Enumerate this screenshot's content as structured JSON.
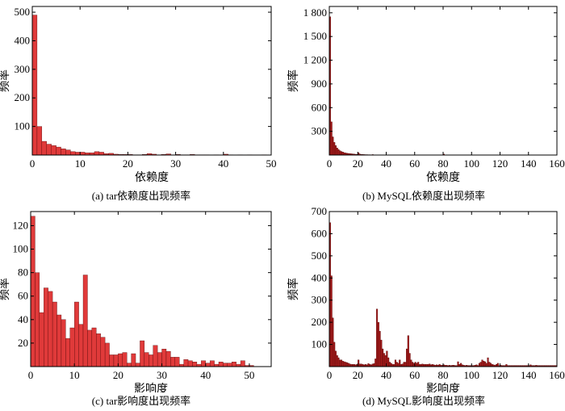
{
  "chart_data": [
    {
      "type": "bar",
      "caption": "(a) tar依赖度出现频率",
      "xlabel": "依赖度",
      "ylabel": "频率",
      "xlim": [
        0,
        50
      ],
      "ylim": [
        0,
        520
      ],
      "xticks": [
        0,
        10,
        20,
        30,
        40,
        50
      ],
      "yticks": [
        100,
        200,
        300,
        400,
        500
      ],
      "bin_width": 1,
      "bar_color": "#e03a3a",
      "x": [
        0,
        1,
        2,
        3,
        4,
        5,
        6,
        7,
        8,
        9,
        10,
        11,
        12,
        13,
        14,
        15,
        16,
        17,
        18,
        19,
        20,
        21,
        22,
        23,
        24,
        25,
        26,
        27,
        28,
        29,
        30,
        31,
        32,
        33,
        34,
        35,
        36,
        37,
        38,
        39,
        40,
        41,
        42,
        43,
        44,
        45,
        46,
        47,
        48,
        49
      ],
      "values": [
        490,
        100,
        48,
        38,
        33,
        28,
        22,
        18,
        12,
        10,
        10,
        8,
        8,
        12,
        10,
        5,
        6,
        3,
        2,
        2,
        2,
        1,
        1,
        2,
        5,
        3,
        1,
        2,
        4,
        1,
        2,
        1,
        1,
        2,
        1,
        1,
        1,
        0,
        1,
        0,
        3,
        1,
        0,
        1,
        0,
        1,
        0,
        0,
        1,
        0
      ]
    },
    {
      "type": "bar",
      "caption": "(b) MySQL依赖度出现频率",
      "xlabel": "依赖度",
      "ylabel": "频率",
      "xlim": [
        0,
        160
      ],
      "ylim": [
        0,
        1880
      ],
      "xticks": [
        0,
        20,
        40,
        60,
        80,
        100,
        120,
        140,
        160
      ],
      "ytick_values": [
        300,
        600,
        900,
        1200,
        1500,
        1800
      ],
      "ytick_labels": [
        "300",
        "600",
        "900",
        "1 200",
        "1 500",
        "1 800"
      ],
      "bin_width": 1,
      "bar_color": "#a61b1b",
      "x": [
        0,
        1,
        2,
        3,
        4,
        5,
        6,
        7,
        8,
        9,
        10,
        11,
        12,
        13,
        14,
        15,
        16,
        17,
        18,
        19,
        20,
        21,
        22,
        23,
        24,
        25,
        26,
        27,
        28,
        29,
        30,
        31,
        32,
        33,
        34,
        35,
        36,
        37,
        38,
        39,
        40,
        41,
        42,
        43,
        44,
        45,
        46,
        47,
        48,
        49,
        50,
        51,
        52,
        53,
        54,
        55,
        56,
        57,
        58,
        59,
        60,
        61,
        62,
        63,
        64,
        65,
        66,
        67,
        68,
        69,
        70,
        71,
        72,
        73,
        74,
        75,
        76,
        77,
        78,
        79,
        80,
        81,
        82,
        83,
        84,
        85,
        86,
        87,
        88,
        89,
        90,
        91,
        92,
        93,
        94,
        95,
        96,
        97,
        98,
        99,
        100,
        101,
        102,
        103,
        104,
        105,
        106,
        107,
        108,
        109,
        110,
        111,
        112,
        113,
        114,
        115,
        116,
        117,
        118,
        119,
        120,
        121,
        122,
        123,
        124,
        125,
        126,
        127,
        128,
        129,
        130,
        131,
        132,
        133,
        134,
        135,
        136,
        137,
        138,
        139,
        140,
        141,
        142,
        143,
        144,
        145,
        146,
        147,
        148,
        149,
        150,
        151,
        152,
        153,
        154,
        155,
        156,
        157,
        158,
        159
      ],
      "values": [
        1750,
        420,
        230,
        160,
        120,
        90,
        70,
        55,
        45,
        38,
        30,
        26,
        22,
        20,
        18,
        16,
        14,
        12,
        10,
        9,
        30,
        12,
        8,
        7,
        6,
        5,
        5,
        4,
        4,
        3,
        6,
        3,
        3,
        2,
        2,
        2,
        3,
        2,
        2,
        2,
        2,
        2,
        1,
        1,
        1,
        1,
        2,
        1,
        1,
        1,
        1,
        1,
        1,
        1,
        1,
        1,
        1,
        1,
        1,
        1,
        1,
        1,
        1,
        1,
        1,
        1,
        1,
        1,
        1,
        1,
        1,
        1,
        1,
        1,
        1,
        1,
        1,
        1,
        1,
        1,
        12,
        1,
        1,
        1,
        1,
        1,
        1,
        1,
        1,
        1,
        1,
        1,
        1,
        1,
        1,
        1,
        1,
        1,
        1,
        1,
        1,
        1,
        1,
        1,
        1,
        1,
        1,
        1,
        1,
        1,
        1,
        1,
        1,
        1,
        1,
        1,
        1,
        1,
        1,
        1,
        1,
        1,
        1,
        1,
        1,
        1,
        1,
        1,
        1,
        1,
        1,
        1,
        1,
        1,
        1,
        1,
        1,
        1,
        1,
        1,
        1,
        1,
        1,
        1,
        1,
        1,
        1,
        1,
        1,
        1,
        1,
        1,
        1,
        1,
        1,
        1,
        1,
        1,
        1,
        1
      ]
    },
    {
      "type": "bar",
      "caption": "(c) tar影响度出现频率",
      "xlabel": "影响度",
      "ylabel": "频率",
      "xlim": [
        0,
        55
      ],
      "ylim": [
        0,
        132
      ],
      "xticks": [
        0,
        10,
        20,
        30,
        40,
        50
      ],
      "yticks": [
        20,
        40,
        60,
        80,
        100,
        120
      ],
      "bin_width": 1,
      "bar_color": "#e03a3a",
      "x": [
        0,
        1,
        2,
        3,
        4,
        5,
        6,
        7,
        8,
        9,
        10,
        11,
        12,
        13,
        14,
        15,
        16,
        17,
        18,
        19,
        20,
        21,
        22,
        23,
        24,
        25,
        26,
        27,
        28,
        29,
        30,
        31,
        32,
        33,
        34,
        35,
        36,
        37,
        38,
        39,
        40,
        41,
        42,
        43,
        44,
        45,
        46,
        47,
        48,
        49,
        50,
        51,
        52,
        53,
        54
      ],
      "values": [
        128,
        80,
        46,
        67,
        64,
        55,
        44,
        40,
        24,
        33,
        55,
        36,
        78,
        31,
        33,
        28,
        25,
        20,
        10,
        10,
        11,
        12,
        3,
        11,
        3,
        22,
        12,
        10,
        18,
        12,
        15,
        13,
        8,
        8,
        2,
        6,
        5,
        4,
        2,
        5,
        3,
        5,
        2,
        4,
        3,
        3,
        4,
        2,
        5,
        1,
        1,
        0,
        0,
        0,
        0
      ]
    },
    {
      "type": "bar",
      "caption": "(d) MySQL影响度出现频率",
      "xlabel": "影响度",
      "ylabel": "频率",
      "xlim": [
        0,
        160
      ],
      "ylim": [
        0,
        700
      ],
      "xticks": [
        0,
        20,
        40,
        60,
        80,
        100,
        120,
        140,
        160
      ],
      "yticks": [
        100,
        200,
        300,
        400,
        500,
        600,
        700
      ],
      "bin_width": 1,
      "bar_color": "#a61b1b",
      "x": [
        0,
        1,
        2,
        3,
        4,
        5,
        6,
        7,
        8,
        9,
        10,
        11,
        12,
        13,
        14,
        15,
        16,
        17,
        18,
        19,
        20,
        21,
        22,
        23,
        24,
        25,
        26,
        27,
        28,
        29,
        30,
        31,
        32,
        33,
        34,
        35,
        36,
        37,
        38,
        39,
        40,
        41,
        42,
        43,
        44,
        45,
        46,
        47,
        48,
        49,
        50,
        51,
        52,
        53,
        54,
        55,
        56,
        57,
        58,
        59,
        60,
        61,
        62,
        63,
        64,
        65,
        66,
        67,
        68,
        69,
        70,
        71,
        72,
        73,
        74,
        75,
        76,
        77,
        78,
        79,
        80,
        81,
        82,
        83,
        84,
        85,
        86,
        87,
        88,
        89,
        90,
        91,
        92,
        93,
        94,
        95,
        96,
        97,
        98,
        99,
        100,
        101,
        102,
        103,
        104,
        105,
        106,
        107,
        108,
        109,
        110,
        111,
        112,
        113,
        114,
        115,
        116,
        117,
        118,
        119,
        120,
        121,
        122,
        123,
        124,
        125,
        126,
        127,
        128,
        129,
        130,
        131,
        132,
        133,
        134,
        135,
        136,
        137,
        138,
        139,
        140,
        141,
        142,
        143,
        144,
        145,
        146,
        147,
        148,
        149,
        150,
        151,
        152,
        153,
        154,
        155,
        156,
        157,
        158,
        159
      ],
      "values": [
        650,
        410,
        220,
        110,
        70,
        50,
        40,
        30,
        30,
        25,
        22,
        20,
        18,
        15,
        12,
        10,
        10,
        10,
        8,
        10,
        30,
        12,
        12,
        10,
        8,
        10,
        8,
        14,
        10,
        8,
        12,
        14,
        35,
        260,
        200,
        160,
        120,
        80,
        60,
        50,
        70,
        40,
        20,
        15,
        10,
        10,
        30,
        20,
        15,
        30,
        10,
        12,
        20,
        20,
        80,
        140,
        60,
        30,
        20,
        15,
        20,
        15,
        20,
        10,
        10,
        12,
        10,
        10,
        10,
        10,
        12,
        8,
        10,
        8,
        6,
        8,
        6,
        10,
        6,
        6,
        8,
        6,
        6,
        5,
        6,
        5,
        6,
        6,
        5,
        5,
        22,
        10,
        15,
        8,
        6,
        5,
        6,
        5,
        5,
        5,
        5,
        5,
        6,
        8,
        5,
        15,
        20,
        30,
        25,
        22,
        15,
        40,
        20,
        15,
        10,
        8,
        6,
        10,
        15,
        5,
        6,
        5,
        5,
        5,
        10,
        5,
        5,
        5,
        5,
        5,
        5,
        5,
        5,
        5,
        5,
        5,
        5,
        5,
        5,
        5,
        5,
        8,
        5,
        5,
        5,
        6,
        5,
        5,
        5,
        5,
        5,
        5,
        5,
        5,
        5,
        5,
        5,
        5,
        5,
        5
      ]
    }
  ]
}
